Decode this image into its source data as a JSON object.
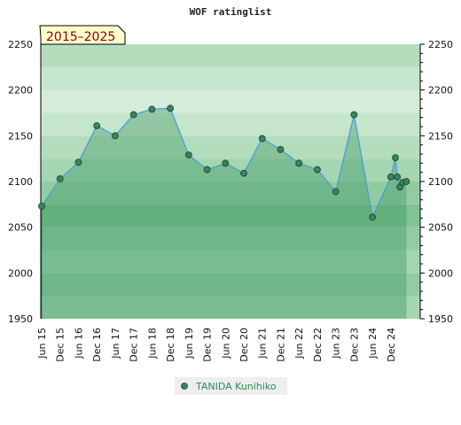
{
  "chart_data": {
    "type": "area",
    "title": "WOF ratinglist",
    "badge": "2015–2025",
    "ylim": [
      1950,
      2250
    ],
    "yticks": [
      1950,
      2000,
      2050,
      2100,
      2150,
      2200,
      2250
    ],
    "xlim": [
      0,
      20.6
    ],
    "xticks": [
      "Jun 15",
      "Dec 15",
      "Jun 16",
      "Dec 16",
      "Jun 17",
      "Dec 17",
      "Jun 18",
      "Dec 18",
      "Jun 19",
      "Dec 19",
      "Jun 20",
      "Dec 20",
      "Jun 21",
      "Dec 21",
      "Jun 22",
      "Dec 22",
      "Jun 23",
      "Dec 23",
      "Jun 24",
      "Dec 24"
    ],
    "series": [
      {
        "name": "TANIDA Kunihiko",
        "color": "#2e8b57",
        "x": [
          0,
          1,
          2,
          3,
          4,
          5,
          6,
          7,
          8,
          9,
          10,
          11,
          12,
          13,
          14,
          15,
          16,
          17,
          18,
          19,
          19.25,
          19.35,
          19.5,
          19.65,
          19.85
        ],
        "values": [
          2073,
          2103,
          2121,
          2161,
          2150,
          2173,
          2179,
          2180,
          2129,
          2113,
          2120,
          2109,
          2147,
          2135,
          2120,
          2113,
          2089,
          2173,
          2061,
          2105,
          2126,
          2105,
          2094,
          2099,
          2100
        ]
      }
    ],
    "legend_position": "bottom-center"
  }
}
